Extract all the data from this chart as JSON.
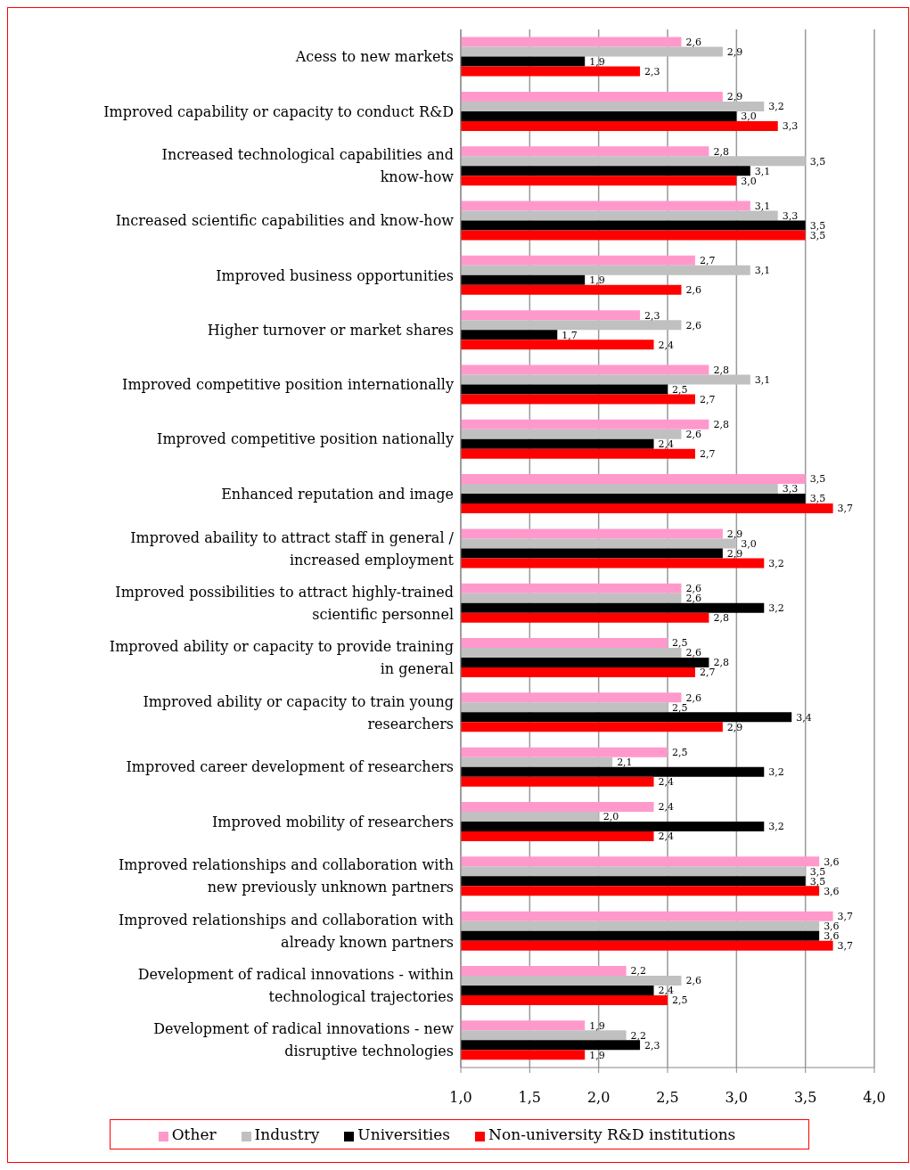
{
  "chart_data": {
    "type": "bar",
    "orientation": "horizontal",
    "categories": [
      "Acess to new markets",
      "Improved capability or capacity to conduct R&D",
      "Increased technological capabilities and know-how",
      "Increased scientific capabilities and know-how",
      "Improved business opportunities",
      "Higher turnover or market shares",
      "Improved competitive position internationally",
      "Improved competitive position nationally",
      "Enhanced reputation and image",
      "Improved abaility to attract staff in general / increased employment",
      "Improved possibilities to attract highly-trained scientific personnel",
      "Improved ability or capacity to provide training in general",
      "Improved ability or capacity to train young researchers",
      "Improved career development of researchers",
      "Improved mobility of researchers",
      "Improved relationships and collaboration with new previously unknown partners",
      "Improved relationships and collaboration with already known partners",
      "Development of radical innovations - within technological trajectories",
      "Development of radical innovations - new disruptive technologies"
    ],
    "series": [
      {
        "name": "Other",
        "color": "#ff99cc",
        "values": [
          2.6,
          2.9,
          2.8,
          3.1,
          2.7,
          2.3,
          2.8,
          2.8,
          3.5,
          2.9,
          2.6,
          2.5,
          2.6,
          2.5,
          2.4,
          3.6,
          3.7,
          2.2,
          1.9
        ],
        "value_labels": [
          "2,6",
          "2,9",
          "2,8",
          "3,1",
          "2,7",
          "2,3",
          "2,8",
          "2,8",
          "3,5",
          "2,9",
          "2,6",
          "2,5",
          "2,6",
          "2,5",
          "2,4",
          "3,6",
          "3,7",
          "2,2",
          "1,9"
        ]
      },
      {
        "name": "Industry",
        "color": "#c0c0c0",
        "values": [
          2.9,
          3.2,
          3.5,
          3.3,
          3.1,
          2.6,
          3.1,
          2.6,
          3.3,
          3.0,
          2.6,
          2.6,
          2.5,
          2.1,
          2.0,
          3.5,
          3.6,
          2.6,
          2.2
        ],
        "value_labels": [
          "2,9",
          "3,2",
          "3,5",
          "3,3",
          "3,1",
          "2,6",
          "3,1",
          "2,6",
          "3,3",
          "3,0",
          "2,6",
          "2,6",
          "2,5",
          "2,1",
          "2,0",
          "3,5",
          "3,6",
          "2,6",
          "2,2"
        ]
      },
      {
        "name": "Universities",
        "color": "#000000",
        "values": [
          1.9,
          3.0,
          3.1,
          3.5,
          1.9,
          1.7,
          2.5,
          2.4,
          3.5,
          2.9,
          3.2,
          2.8,
          3.4,
          3.2,
          3.2,
          3.5,
          3.6,
          2.4,
          2.3
        ],
        "value_labels": [
          "1,9",
          "3,0",
          "3,1",
          "3,5",
          "1,9",
          "1,7",
          "2,5",
          "2,4",
          "3,5",
          "2,9",
          "3,2",
          "2,8",
          "3,4",
          "3,2",
          "3,2",
          "3,5",
          "3,6",
          "2,4",
          "2,3"
        ]
      },
      {
        "name": "Non-university R&D institutions",
        "color": "#ff0000",
        "values": [
          2.3,
          3.3,
          3.0,
          3.5,
          2.6,
          2.4,
          2.7,
          2.7,
          3.7,
          3.2,
          2.8,
          2.7,
          2.9,
          2.4,
          2.4,
          3.6,
          3.7,
          2.5,
          1.9
        ],
        "value_labels": [
          "2,3",
          "3,3",
          "3,0",
          "3,5",
          "2,6",
          "2,4",
          "2,7",
          "2,7",
          "3,7",
          "3,2",
          "2,8",
          "2,7",
          "2,9",
          "2,4",
          "2,4",
          "3,6",
          "3,7",
          "2,5",
          "1,9"
        ]
      }
    ],
    "xlim": [
      1,
      4
    ],
    "xticks": [
      {
        "value": 1,
        "label": "1,0"
      },
      {
        "value": 1.5,
        "label": "1,5"
      },
      {
        "value": 2,
        "label": "2,0"
      },
      {
        "value": 2.5,
        "label": "2,5"
      },
      {
        "value": 3,
        "label": "3,0"
      },
      {
        "value": 3.5,
        "label": "3,5"
      },
      {
        "value": 4,
        "label": "4,0"
      }
    ],
    "grid": "x",
    "legend": "bottom"
  }
}
